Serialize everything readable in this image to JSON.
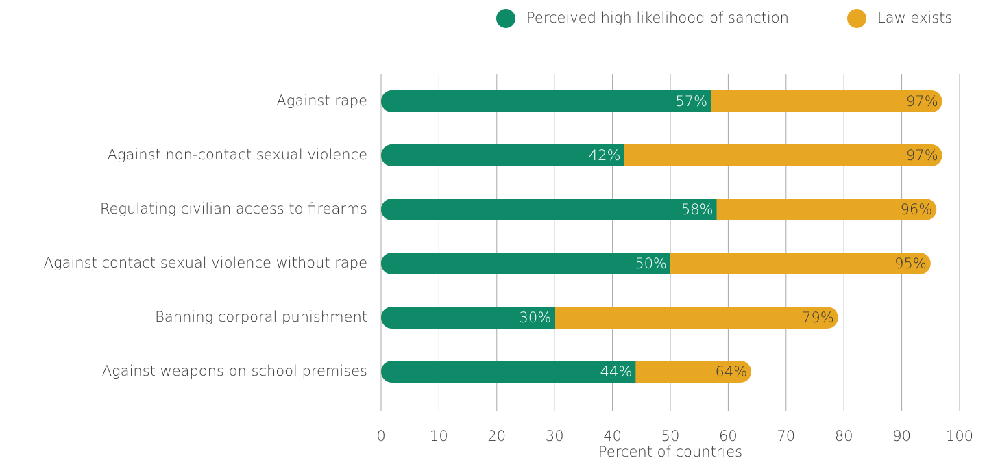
{
  "chart_data": {
    "type": "bar",
    "orientation": "horizontal",
    "categories": [
      "Against rape",
      "Against non-contact sexual violence",
      "Regulating civilian access to firearms",
      "Against contact sexual violence without rape",
      "Banning corporal punishment",
      "Against weapons on school premises"
    ],
    "series": [
      {
        "name": "Perceived high likelihood of sanction",
        "color": "#0f8a68",
        "values": [
          57,
          42,
          58,
          50,
          30,
          44
        ],
        "value_labels": [
          "57%",
          "42%",
          "58%",
          "50%",
          "30%",
          "44%"
        ]
      },
      {
        "name": "Law exists",
        "color": "#e8a722",
        "values": [
          97,
          97,
          96,
          95,
          79,
          64
        ],
        "value_labels": [
          "97%",
          "97%",
          "96%",
          "95%",
          "79%",
          "64%"
        ]
      }
    ],
    "xlabel": "Percent of countries",
    "xlim": [
      0,
      100
    ],
    "xticks": [
      0,
      10,
      20,
      30,
      40,
      50,
      60,
      70,
      80,
      90,
      100
    ],
    "grid": true,
    "legend": "top-right"
  }
}
